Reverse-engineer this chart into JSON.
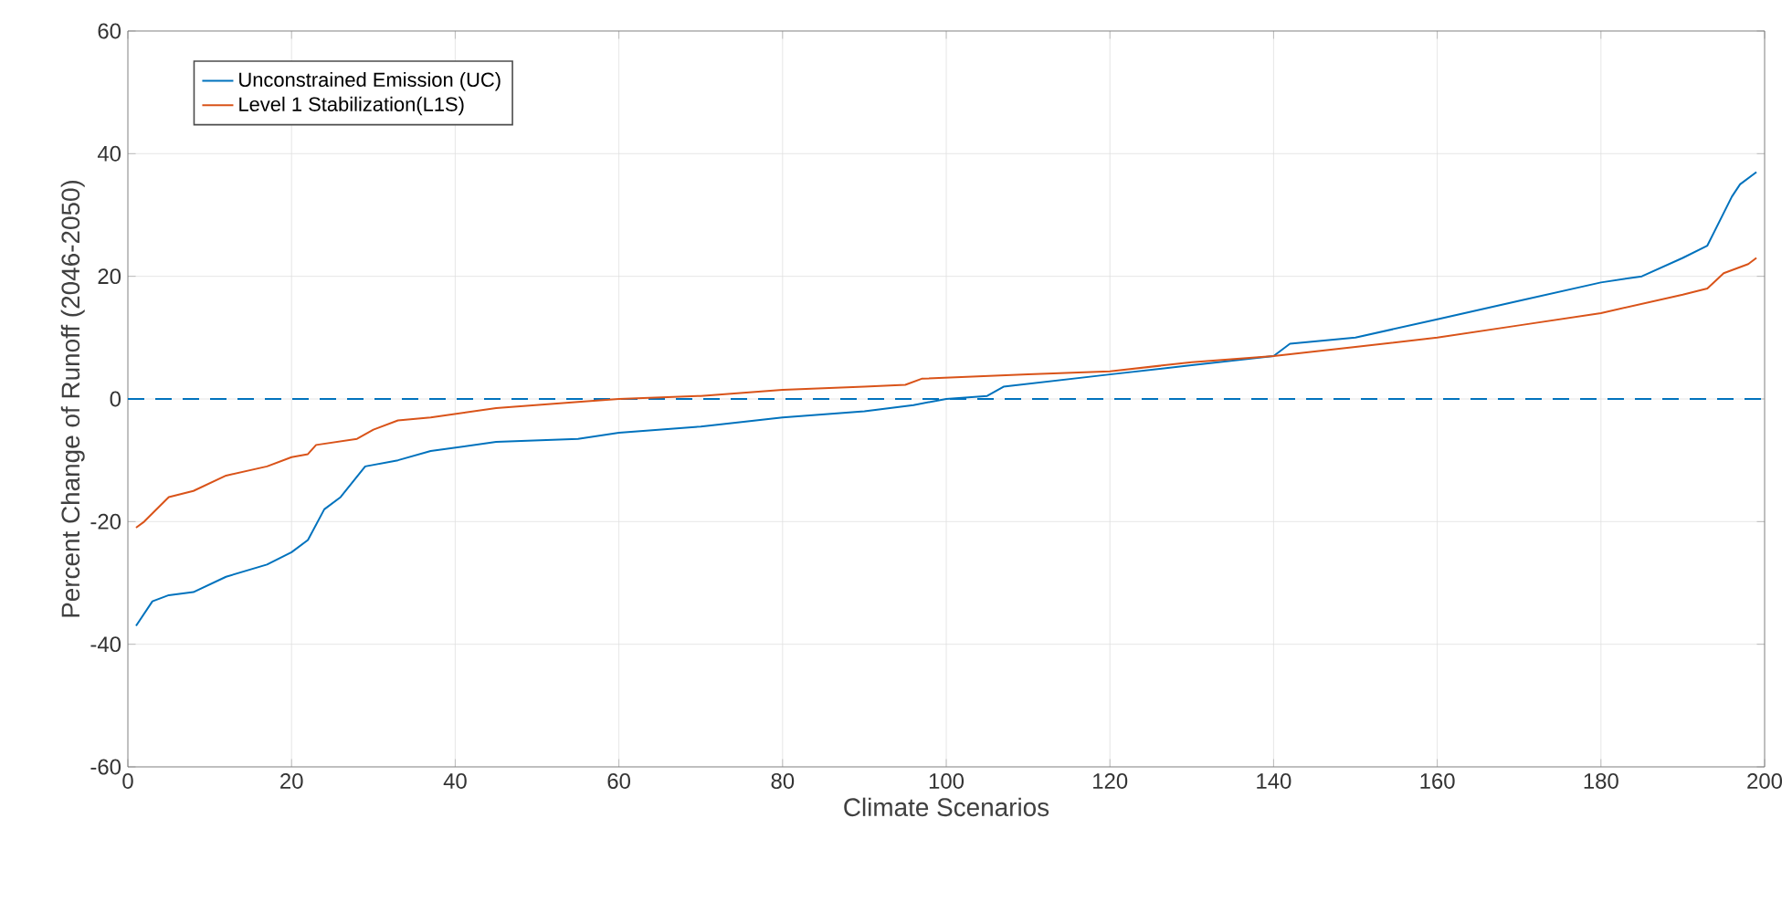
{
  "chart_data": {
    "type": "line",
    "xlabel": "Climate Scenarios",
    "ylabel": "Percent Change of Runoff (2046-2050)",
    "xlim": [
      0,
      200
    ],
    "ylim": [
      -60,
      60
    ],
    "xticks": [
      0,
      20,
      40,
      60,
      80,
      100,
      120,
      140,
      160,
      180,
      200
    ],
    "yticks": [
      -60,
      -40,
      -20,
      0,
      20,
      40,
      60
    ],
    "grid": true,
    "legend": "top left",
    "line_style": "solid",
    "marker": "none",
    "ref_lines": [
      {
        "axis": "y",
        "value": 0,
        "color": "#0072bd",
        "line_style": "dashed"
      }
    ],
    "series": [
      {
        "name": "Unconstrained Emission (UC)",
        "color": "#0072bd",
        "x": [
          1,
          3,
          5,
          8,
          12,
          17,
          20,
          22,
          24,
          26,
          29,
          33,
          37,
          45,
          55,
          60,
          70,
          80,
          90,
          96,
          100,
          105,
          107,
          120,
          130,
          140,
          142,
          150,
          160,
          170,
          180,
          185,
          190,
          193,
          196,
          197,
          199
        ],
        "values": [
          -37,
          -33,
          -32,
          -31.5,
          -29,
          -27,
          -25,
          -23,
          -18,
          -16,
          -11,
          -10,
          -8.5,
          -7,
          -6.5,
          -5.5,
          -4.5,
          -3,
          -2,
          -1,
          0,
          0.5,
          2,
          4,
          5.5,
          7,
          9,
          10,
          13,
          16,
          19,
          20,
          23,
          25,
          33,
          35,
          37
        ]
      },
      {
        "name": "Level 1 Stabilization(L1S)",
        "color": "#d95319",
        "x": [
          1,
          2,
          5,
          8,
          12,
          17,
          20,
          22,
          23,
          28,
          30,
          33,
          37,
          45,
          55,
          60,
          70,
          80,
          90,
          95,
          97,
          110,
          120,
          130,
          140,
          150,
          160,
          170,
          180,
          190,
          193,
          195,
          198,
          199
        ],
        "values": [
          -21,
          -20,
          -16,
          -15,
          -12.5,
          -11,
          -9.5,
          -9,
          -7.5,
          -6.5,
          -5,
          -3.5,
          -3,
          -1.5,
          -0.5,
          0,
          0.5,
          1.5,
          2,
          2.3,
          3.3,
          4,
          4.5,
          6,
          7,
          8.5,
          10,
          12,
          14,
          17,
          18,
          20.5,
          22,
          23
        ]
      }
    ]
  }
}
